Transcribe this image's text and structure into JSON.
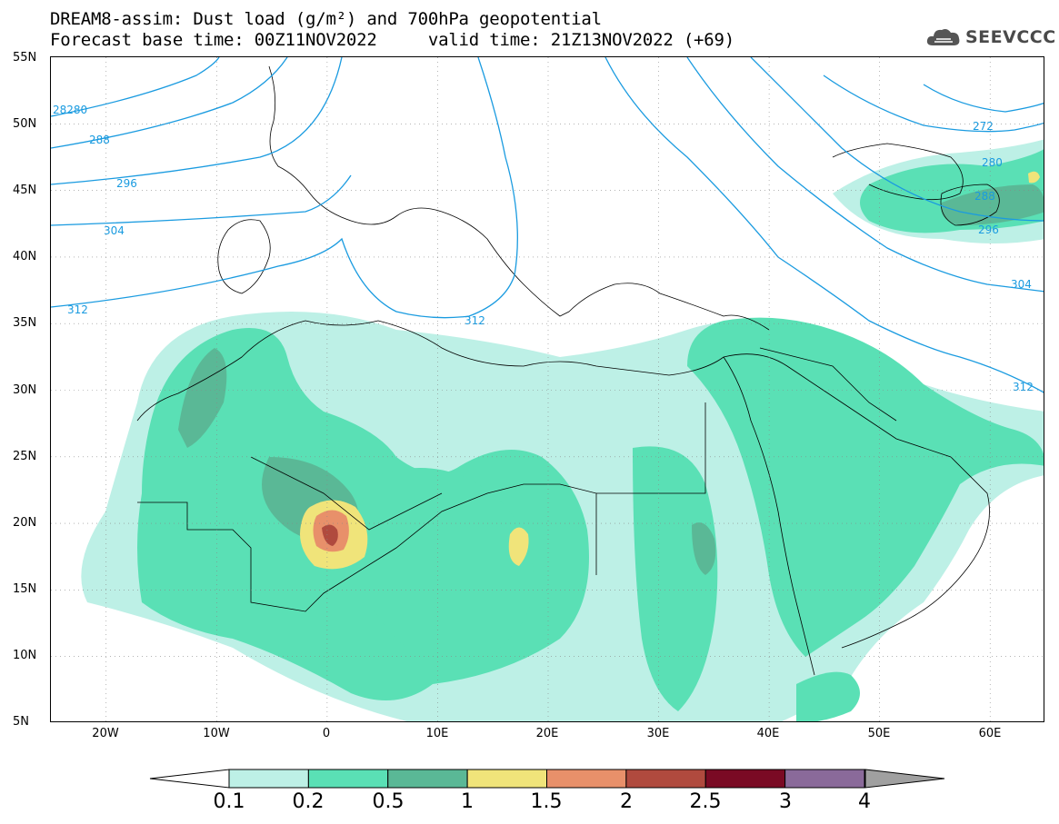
{
  "title": {
    "line1": "DREAM8-assim: Dust load (g/m²) and 700hPa geopotential",
    "line2": "Forecast base time: 00Z11NOV2022     valid time: 21Z13NOV2022 (+69)"
  },
  "logo": {
    "text": "SEEVCCC",
    "icon": "cloud-icon"
  },
  "map": {
    "projection": "lat-lon",
    "lon_range": [
      -25,
      65
    ],
    "lat_range": [
      5,
      55
    ],
    "lat_ticks": [
      "55N",
      "50N",
      "45N",
      "40N",
      "35N",
      "30N",
      "25N",
      "20N",
      "15N",
      "10N",
      "5N"
    ],
    "lon_ticks": [
      "20W",
      "10W",
      "0",
      "10E",
      "20E",
      "30E",
      "40E",
      "50E",
      "60E"
    ],
    "grid": "dotted",
    "contour_color": "#1a9be0",
    "contour_labels": [
      "28280",
      "288",
      "296",
      "304",
      "312",
      "312",
      "272",
      "280",
      "288",
      "296",
      "304",
      "312"
    ]
  },
  "colorbar": {
    "ticks": [
      "0.1",
      "0.2",
      "0.5",
      "1",
      "1.5",
      "2",
      "2.5",
      "3",
      "4"
    ],
    "colors": [
      "#bdf0e6",
      "#5ae0b5",
      "#5ab896",
      "#f0e47a",
      "#e8906a",
      "#b04a3e",
      "#7a0a24",
      "#8a6a9a"
    ],
    "under_color": "#ffffff",
    "over_color": "#a0a0a0"
  }
}
